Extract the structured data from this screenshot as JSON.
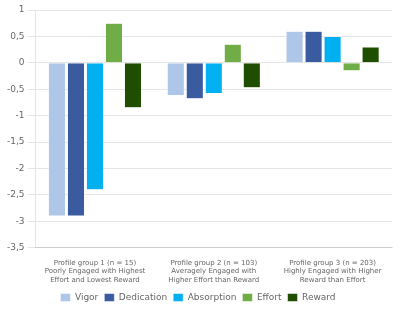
{
  "chart_data": {
    "type": "bar",
    "categories": [
      "Profile group 1 (n = 15)\nPoorly Engaged with Highest\nEffort and Lowest Reward",
      "Profile group 2 (n = 103)\nAveragely Engaged with\nHigher Effort than Reward",
      "Profile group 3 (n = 203)\nHighly Engaged with Higher\nReward than Effort"
    ],
    "series": [
      {
        "name": "Vigor",
        "color": "#aec6e8",
        "values": [
          -2.9,
          -0.62,
          0.6
        ]
      },
      {
        "name": "Dedication",
        "color": "#3a5ba0",
        "values": [
          -2.9,
          -0.68,
          0.6
        ]
      },
      {
        "name": "Absorption",
        "color": "#00b0f0",
        "values": [
          -2.4,
          -0.58,
          0.5
        ]
      },
      {
        "name": "Effort",
        "color": "#70ad47",
        "values": [
          0.75,
          0.35,
          -0.15
        ]
      },
      {
        "name": "Reward",
        "color": "#1f4e00",
        "values": [
          -0.85,
          -0.47,
          0.3
        ]
      }
    ],
    "ylim": [
      -3.5,
      1.0
    ],
    "yticks": [
      1,
      {
        "value": 0.5,
        "label": "0,5"
      },
      0,
      {
        "value": -0.5,
        "label": "-0,5"
      },
      -1,
      {
        "value": -1.5,
        "label": "-1,5"
      },
      -2,
      {
        "value": -2.5,
        "label": "-2,5"
      },
      -3,
      {
        "value": -3.5,
        "label": "-3,5"
      }
    ],
    "grid": true,
    "legend": "bottom"
  }
}
